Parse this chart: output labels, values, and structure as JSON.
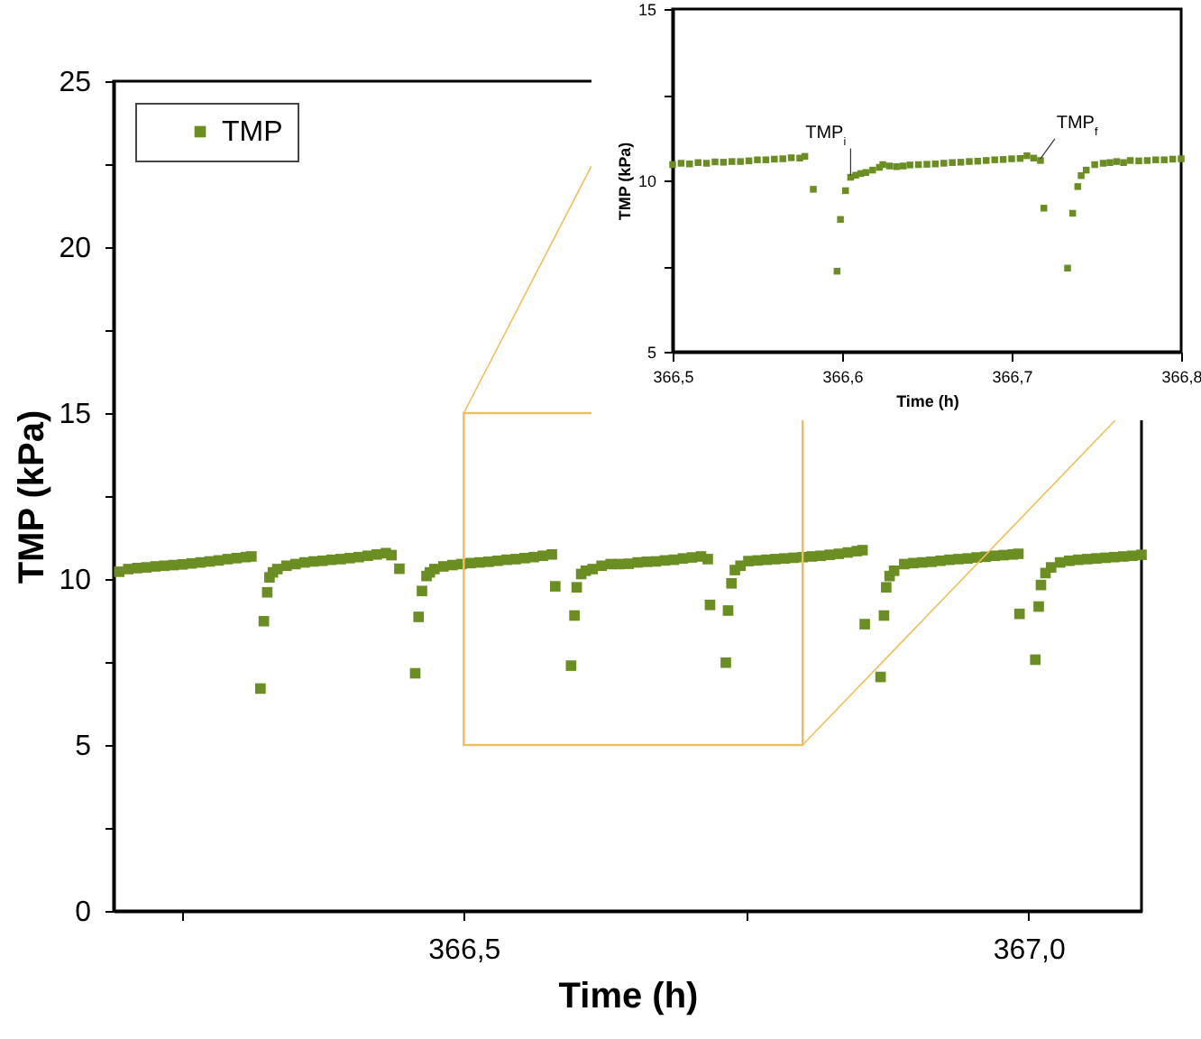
{
  "chart_data": [
    {
      "type": "scatter",
      "xlabel": "Time (h)",
      "ylabel": "TMP (kPa)",
      "legend": "top left",
      "marker": "square",
      "xlim": [
        366.19,
        367.1
      ],
      "ylim": [
        0,
        25
      ],
      "xticks": [
        {
          "value": 366.25,
          "label": null
        },
        {
          "value": 366.5,
          "label": "366,5"
        },
        {
          "value": 366.75,
          "label": null
        },
        {
          "value": 367.0,
          "label": "367,0"
        }
      ],
      "yticks": [
        0,
        {
          "value": 2.5,
          "label": null
        },
        5,
        {
          "value": 7.5,
          "label": null
        },
        10,
        {
          "value": 12.5,
          "label": null
        },
        15,
        {
          "value": 17.5,
          "label": null
        },
        20,
        {
          "value": 22.5,
          "label": null
        },
        25
      ],
      "series": [
        {
          "name": "TMP",
          "color": "#6b8e23",
          "x": [
            366.195,
            366.203,
            366.211,
            366.219,
            366.227,
            366.235,
            366.243,
            366.251,
            366.259,
            366.267,
            366.275,
            366.283,
            366.291,
            366.299,
            366.307,
            366.312,
            366.32,
            366.323,
            366.326,
            366.328,
            366.331,
            366.335,
            366.343,
            366.351,
            366.359,
            366.367,
            366.375,
            366.383,
            366.391,
            366.399,
            366.407,
            366.415,
            366.423,
            366.431,
            366.436,
            366.443,
            366.457,
            366.46,
            366.463,
            366.467,
            366.47,
            366.474,
            366.482,
            366.49,
            366.498,
            366.506,
            366.514,
            366.522,
            366.53,
            366.538,
            366.546,
            366.554,
            366.562,
            366.57,
            366.578,
            366.581,
            366.595,
            366.598,
            366.6,
            366.604,
            366.608,
            366.614,
            366.622,
            366.63,
            366.638,
            366.646,
            366.654,
            366.662,
            366.67,
            366.678,
            366.686,
            366.694,
            366.702,
            366.71,
            366.716,
            366.718,
            366.732,
            366.734,
            366.737,
            366.74,
            366.745,
            366.752,
            366.76,
            366.768,
            366.776,
            366.784,
            366.792,
            366.8,
            366.808,
            366.816,
            366.824,
            366.832,
            366.84,
            366.848,
            366.853,
            366.855,
            366.869,
            366.872,
            366.874,
            366.877,
            366.881,
            366.89,
            366.898,
            366.906,
            366.914,
            366.922,
            366.93,
            366.938,
            366.946,
            366.954,
            366.962,
            366.97,
            366.978,
            366.986,
            366.991,
            366.992,
            367.006,
            367.009,
            367.011,
            367.015,
            367.02,
            367.028,
            367.036,
            367.044,
            367.052,
            367.06,
            367.068,
            367.076,
            367.084,
            367.092,
            367.1
          ],
          "values": [
            10.22,
            10.3,
            10.33,
            10.35,
            10.38,
            10.4,
            10.42,
            10.44,
            10.47,
            10.5,
            10.53,
            10.56,
            10.6,
            10.63,
            10.66,
            10.68,
            6.7,
            8.73,
            9.6,
            10.05,
            10.2,
            10.3,
            10.4,
            10.45,
            10.5,
            10.53,
            10.55,
            10.58,
            10.6,
            10.63,
            10.66,
            10.7,
            10.74,
            10.78,
            10.72,
            10.31,
            7.16,
            8.86,
            9.64,
            10.09,
            10.2,
            10.3,
            10.38,
            10.42,
            10.45,
            10.48,
            10.5,
            10.52,
            10.55,
            10.58,
            10.6,
            10.63,
            10.66,
            10.7,
            10.74,
            9.78,
            7.39,
            8.9,
            9.75,
            10.15,
            10.25,
            10.3,
            10.4,
            10.45,
            10.45,
            10.46,
            10.5,
            10.52,
            10.53,
            10.56,
            10.58,
            10.62,
            10.65,
            10.68,
            10.6,
            9.22,
            7.48,
            9.05,
            9.87,
            10.27,
            10.4,
            10.54,
            10.56,
            10.58,
            10.6,
            10.62,
            10.64,
            10.66,
            10.68,
            10.7,
            10.73,
            10.76,
            10.8,
            10.84,
            10.87,
            8.64,
            7.05,
            8.9,
            9.75,
            10.09,
            10.25,
            10.45,
            10.48,
            10.5,
            10.52,
            10.55,
            10.58,
            10.6,
            10.62,
            10.65,
            10.67,
            10.7,
            10.72,
            10.74,
            10.76,
            8.95,
            7.57,
            9.17,
            9.82,
            10.18,
            10.35,
            10.5,
            10.55,
            10.58,
            10.6,
            10.62,
            10.64,
            10.66,
            10.68,
            10.7,
            10.73
          ]
        }
      ]
    },
    {
      "type": "scatter",
      "xlabel": "Time (h)",
      "ylabel": "TMP (kPa)",
      "marker": "square",
      "xlim": [
        366.5,
        366.8
      ],
      "ylim": [
        5,
        15
      ],
      "xticks": [
        {
          "value": 366.5,
          "label": "366,5"
        },
        {
          "value": 366.6,
          "label": "366,6"
        },
        {
          "value": 366.7,
          "label": "366,7"
        },
        {
          "value": 366.8,
          "label": "366,8"
        }
      ],
      "yticks": [
        5,
        {
          "value": 7.5,
          "label": null
        },
        10,
        {
          "value": 12.5,
          "label": null
        },
        15
      ],
      "annotations": [
        {
          "text": "TMP$_{i}$",
          "x": 366.605,
          "y": 10.09
        },
        {
          "text": "TMP$_{f}$",
          "x": 366.717,
          "y": 10.58
        }
      ],
      "series": [
        {
          "color": "#6b8e23",
          "x": [
            366.5,
            366.505,
            366.51,
            366.515,
            366.52,
            366.525,
            366.53,
            366.535,
            366.54,
            366.545,
            366.55,
            366.555,
            366.56,
            366.565,
            366.57,
            366.575,
            366.578,
            366.583,
            366.597,
            366.599,
            366.602,
            366.605,
            366.608,
            366.611,
            366.614,
            366.618,
            366.622,
            366.624,
            366.628,
            366.632,
            366.636,
            366.64,
            366.645,
            366.65,
            366.655,
            366.66,
            366.665,
            366.67,
            366.675,
            366.68,
            366.685,
            366.69,
            366.695,
            366.7,
            366.705,
            366.709,
            366.713,
            366.717,
            366.719,
            366.733,
            366.736,
            366.739,
            366.741,
            366.744,
            366.749,
            366.754,
            366.758,
            366.762,
            366.766,
            366.77,
            366.775,
            366.78,
            366.785,
            366.79,
            366.795,
            366.8
          ],
          "values": [
            10.46,
            10.5,
            10.48,
            10.52,
            10.5,
            10.54,
            10.53,
            10.55,
            10.55,
            10.57,
            10.6,
            10.6,
            10.62,
            10.63,
            10.66,
            10.65,
            10.7,
            9.74,
            7.35,
            8.86,
            9.7,
            10.09,
            10.15,
            10.2,
            10.23,
            10.3,
            10.38,
            10.46,
            10.42,
            10.4,
            10.42,
            10.45,
            10.46,
            10.47,
            10.48,
            10.5,
            10.52,
            10.53,
            10.55,
            10.56,
            10.58,
            10.6,
            10.61,
            10.63,
            10.64,
            10.72,
            10.65,
            10.58,
            9.19,
            7.44,
            9.04,
            9.82,
            10.14,
            10.3,
            10.46,
            10.5,
            10.52,
            10.55,
            10.52,
            10.58,
            10.57,
            10.58,
            10.6,
            10.6,
            10.62,
            10.63
          ]
        }
      ]
    }
  ]
}
